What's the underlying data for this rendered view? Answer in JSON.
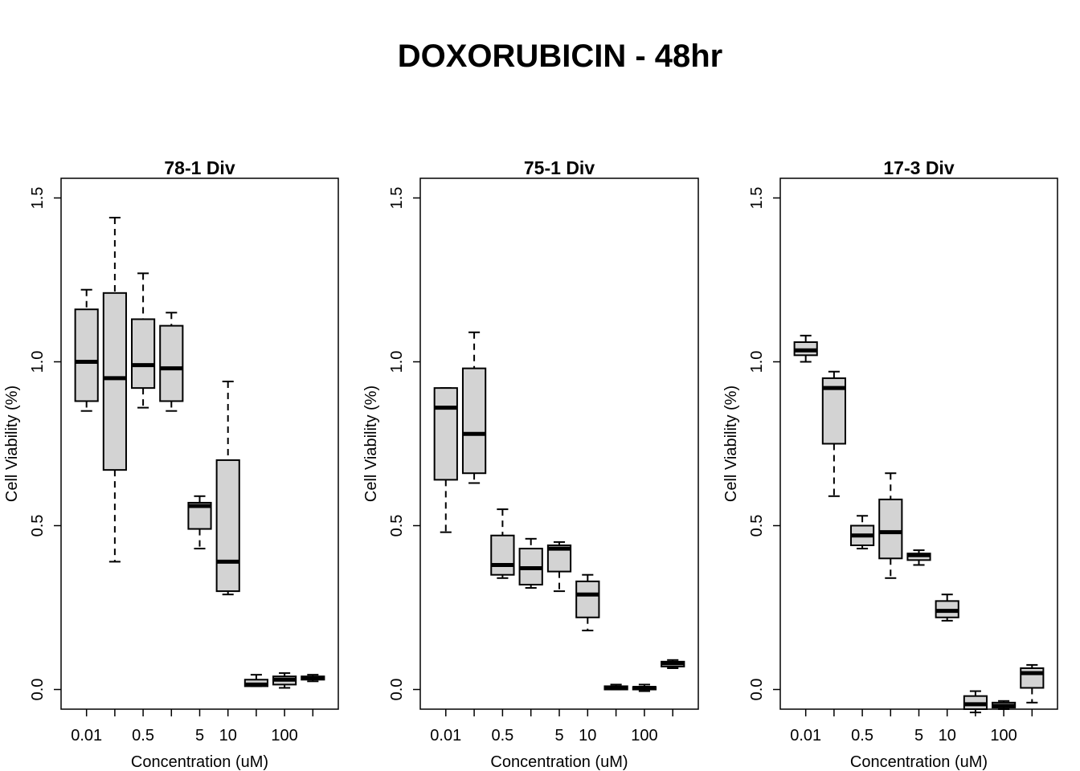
{
  "title": "DOXORUBICIN - 48hr",
  "chart_data": [
    {
      "type": "box",
      "title": "78-1 Div",
      "xlabel": "Concentration (uM)",
      "ylabel": "Cell Viability (%)",
      "ylim": [
        -0.06,
        1.56
      ],
      "yticks": [
        "0.0",
        "0.5",
        "1.0",
        "1.5"
      ],
      "xticklabels": [
        "0.01",
        "",
        "0.5",
        "",
        "5",
        "10",
        "",
        "100",
        ""
      ],
      "boxes": [
        {
          "min": 0.85,
          "q1": 0.88,
          "median": 1.0,
          "q3": 1.16,
          "max": 1.22
        },
        {
          "min": 0.39,
          "q1": 0.67,
          "median": 0.95,
          "q3": 1.21,
          "max": 1.44
        },
        {
          "min": 0.86,
          "q1": 0.92,
          "median": 0.99,
          "q3": 1.13,
          "max": 1.27
        },
        {
          "min": 0.85,
          "q1": 0.88,
          "median": 0.98,
          "q3": 1.11,
          "max": 1.15
        },
        {
          "min": 0.43,
          "q1": 0.49,
          "median": 0.56,
          "q3": 0.57,
          "max": 0.59
        },
        {
          "min": 0.29,
          "q1": 0.3,
          "median": 0.39,
          "q3": 0.7,
          "max": 0.94
        },
        {
          "min": 0.01,
          "q1": 0.01,
          "median": 0.015,
          "q3": 0.03,
          "max": 0.045
        },
        {
          "min": 0.005,
          "q1": 0.015,
          "median": 0.03,
          "q3": 0.04,
          "max": 0.05
        },
        {
          "min": 0.025,
          "q1": 0.03,
          "median": 0.035,
          "q3": 0.04,
          "max": 0.045
        }
      ]
    },
    {
      "type": "box",
      "title": "75-1 Div",
      "xlabel": "Concentration (uM)",
      "ylabel": "Cell Viability (%)",
      "ylim": [
        -0.06,
        1.56
      ],
      "yticks": [
        "0.0",
        "0.5",
        "1.0",
        "1.5"
      ],
      "xticklabels": [
        "0.01",
        "",
        "0.5",
        "",
        "5",
        "10",
        "",
        "100",
        ""
      ],
      "boxes": [
        {
          "min": 0.48,
          "q1": 0.64,
          "median": 0.86,
          "q3": 0.92,
          "max": 0.92
        },
        {
          "min": 0.63,
          "q1": 0.66,
          "median": 0.78,
          "q3": 0.98,
          "max": 1.09
        },
        {
          "min": 0.34,
          "q1": 0.35,
          "median": 0.38,
          "q3": 0.47,
          "max": 0.55
        },
        {
          "min": 0.31,
          "q1": 0.32,
          "median": 0.37,
          "q3": 0.43,
          "max": 0.46
        },
        {
          "min": 0.3,
          "q1": 0.36,
          "median": 0.43,
          "q3": 0.44,
          "max": 0.45
        },
        {
          "min": 0.18,
          "q1": 0.22,
          "median": 0.29,
          "q3": 0.33,
          "max": 0.35
        },
        {
          "min": -0.0,
          "q1": 0.0,
          "median": 0.005,
          "q3": 0.01,
          "max": 0.015
        },
        {
          "min": -0.005,
          "q1": 0.0,
          "median": 0.005,
          "q3": 0.008,
          "max": 0.015
        },
        {
          "min": 0.065,
          "q1": 0.07,
          "median": 0.08,
          "q3": 0.085,
          "max": 0.09
        }
      ]
    },
    {
      "type": "box",
      "title": "17-3 Div",
      "xlabel": "Concentration (uM)",
      "ylabel": "Cell Viability (%)",
      "ylim": [
        -0.06,
        1.56
      ],
      "yticks": [
        "0.0",
        "0.5",
        "1.0",
        "1.5"
      ],
      "xticklabels": [
        "0.01",
        "",
        "0.5",
        "",
        "5",
        "10",
        "",
        "100",
        ""
      ],
      "boxes": [
        {
          "min": 1.0,
          "q1": 1.02,
          "median": 1.035,
          "q3": 1.06,
          "max": 1.08
        },
        {
          "min": 0.59,
          "q1": 0.75,
          "median": 0.92,
          "q3": 0.95,
          "max": 0.97
        },
        {
          "min": 0.43,
          "q1": 0.44,
          "median": 0.47,
          "q3": 0.5,
          "max": 0.53
        },
        {
          "min": 0.34,
          "q1": 0.4,
          "median": 0.48,
          "q3": 0.58,
          "max": 0.66
        },
        {
          "min": 0.38,
          "q1": 0.395,
          "median": 0.41,
          "q3": 0.415,
          "max": 0.425
        },
        {
          "min": 0.21,
          "q1": 0.22,
          "median": 0.24,
          "q3": 0.27,
          "max": 0.29
        },
        {
          "min": -0.07,
          "q1": -0.06,
          "median": -0.045,
          "q3": -0.02,
          "max": -0.005
        },
        {
          "min": -0.06,
          "q1": -0.055,
          "median": -0.05,
          "q3": -0.04,
          "max": -0.035
        },
        {
          "min": -0.04,
          "q1": 0.005,
          "median": 0.05,
          "q3": 0.065,
          "max": 0.075
        }
      ]
    }
  ]
}
